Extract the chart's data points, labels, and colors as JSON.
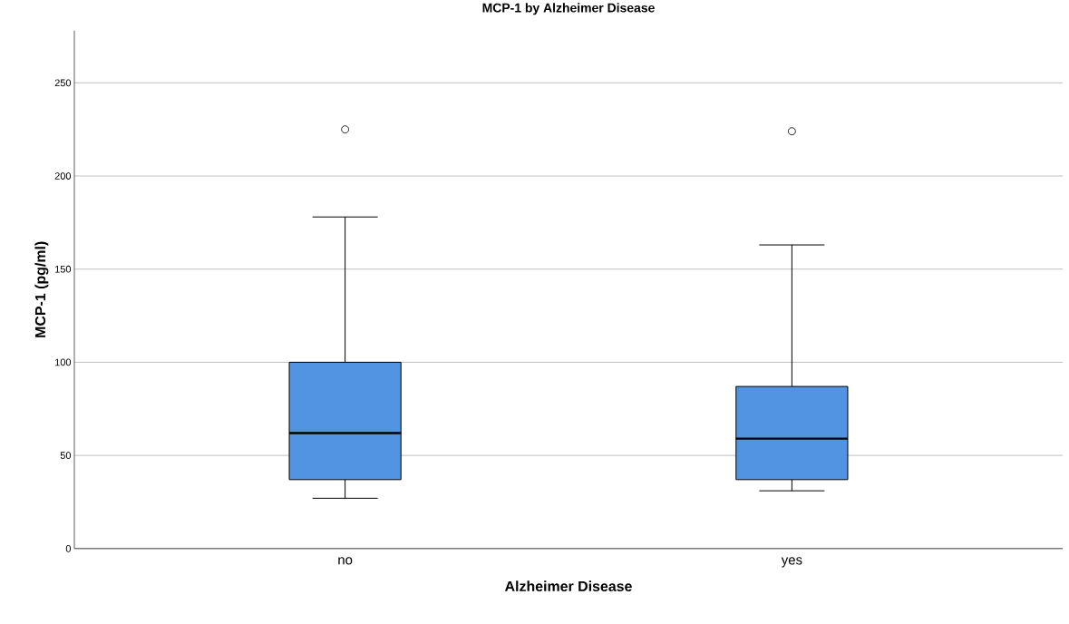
{
  "chart_data": {
    "type": "box",
    "title": "MCP-1 by Alzheimer Disease",
    "xlabel": "Alzheimer Disease",
    "ylabel": "MCP-1 (pg/ml)",
    "categories": [
      "no",
      "yes"
    ],
    "series": [
      {
        "color": "#5294e2",
        "boxes": [
          {
            "low": 27,
            "q1": 37,
            "median": 62,
            "q3": 100,
            "high": 178,
            "outliers": [
              225
            ]
          },
          {
            "low": 31,
            "q1": 37,
            "median": 59,
            "q3": 87,
            "high": 163,
            "outliers": [
              224
            ]
          }
        ]
      }
    ],
    "ylim": [
      0,
      278
    ],
    "yticks": [
      0,
      50,
      100,
      150,
      200,
      250
    ],
    "grid": "y"
  }
}
